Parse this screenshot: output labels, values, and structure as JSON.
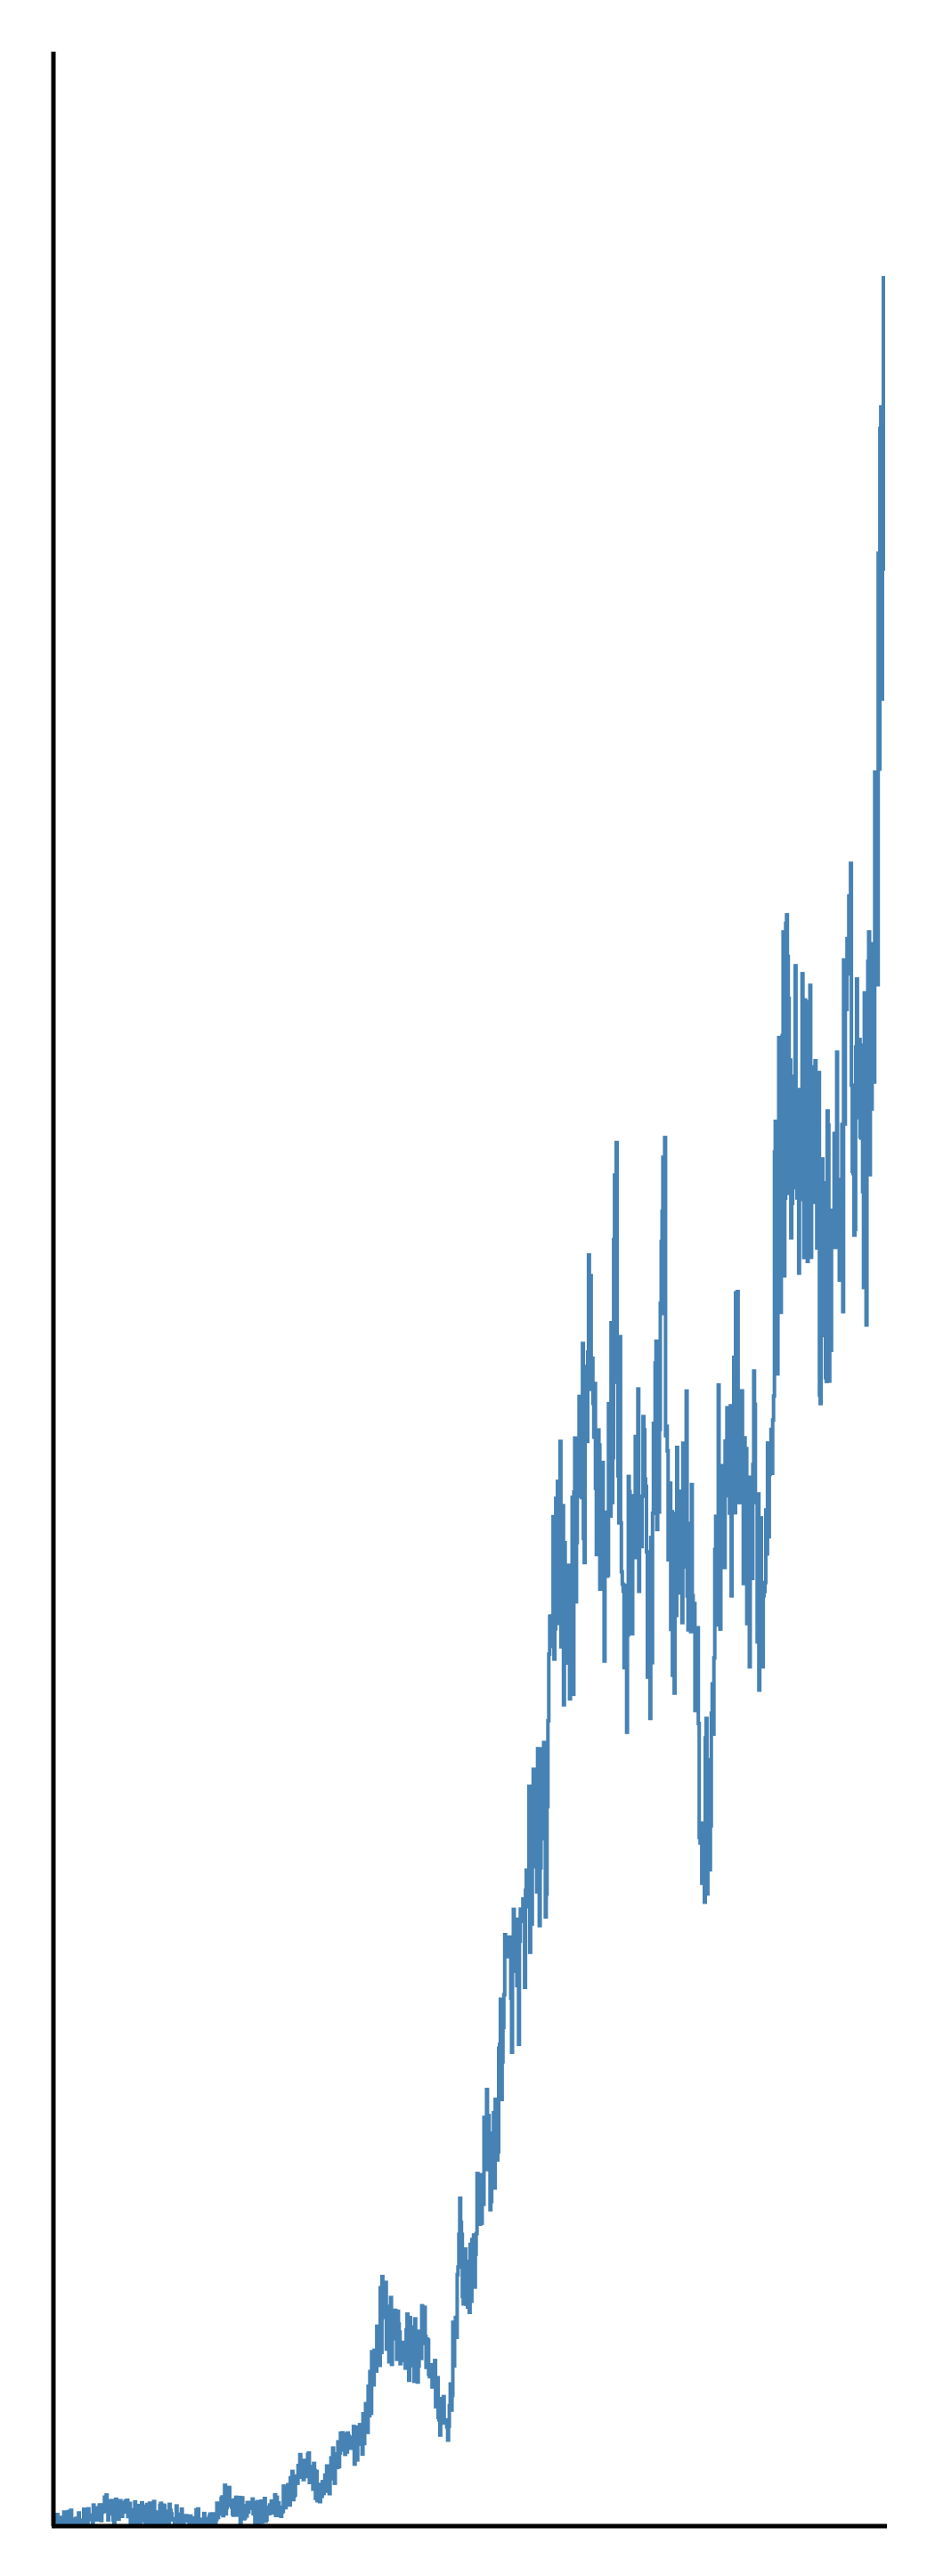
{
  "chart_data": {
    "type": "line",
    "title": "",
    "xlabel": "",
    "ylabel": "",
    "xlim": [
      0,
      480
    ],
    "ylim": [
      0,
      1000
    ],
    "grid": false,
    "line_color": "#4682b4",
    "axis_color": "#000000",
    "series": [
      {
        "anchors": [
          [
            0,
            0
          ],
          [
            20,
            2
          ],
          [
            30,
            8
          ],
          [
            40,
            6
          ],
          [
            55,
            5
          ],
          [
            60,
            4
          ],
          [
            75,
            3
          ],
          [
            90,
            2
          ],
          [
            100,
            12
          ],
          [
            108,
            6
          ],
          [
            120,
            6
          ],
          [
            135,
            12
          ],
          [
            145,
            30
          ],
          [
            155,
            14
          ],
          [
            165,
            32
          ],
          [
            172,
            35
          ],
          [
            180,
            45
          ],
          [
            190,
            95
          ],
          [
            200,
            82
          ],
          [
            210,
            78
          ],
          [
            215,
            85
          ],
          [
            222,
            55
          ],
          [
            228,
            40
          ],
          [
            235,
            125
          ],
          [
            240,
            100
          ],
          [
            245,
            135
          ],
          [
            250,
            170
          ],
          [
            255,
            160
          ],
          [
            260,
            235
          ],
          [
            265,
            245
          ],
          [
            272,
            250
          ],
          [
            275,
            290
          ],
          [
            280,
            310
          ],
          [
            285,
            305
          ],
          [
            290,
            435
          ],
          [
            292,
            455
          ],
          [
            296,
            390
          ],
          [
            300,
            420
          ],
          [
            305,
            460
          ],
          [
            310,
            510
          ],
          [
            315,
            470
          ],
          [
            320,
            420
          ],
          [
            325,
            570
          ],
          [
            330,
            395
          ],
          [
            335,
            430
          ],
          [
            340,
            465
          ],
          [
            345,
            400
          ],
          [
            350,
            510
          ],
          [
            353,
            565
          ],
          [
            356,
            450
          ],
          [
            360,
            420
          ],
          [
            365,
            470
          ],
          [
            370,
            405
          ],
          [
            375,
            300
          ],
          [
            380,
            340
          ],
          [
            385,
            460
          ],
          [
            390,
            450
          ],
          [
            395,
            495
          ],
          [
            400,
            420
          ],
          [
            405,
            455
          ],
          [
            410,
            410
          ],
          [
            415,
            520
          ],
          [
            420,
            610
          ],
          [
            425,
            660
          ],
          [
            430,
            640
          ],
          [
            435,
            600
          ],
          [
            440,
            620
          ],
          [
            445,
            540
          ],
          [
            450,
            585
          ],
          [
            455,
            600
          ],
          [
            460,
            660
          ],
          [
            465,
            645
          ],
          [
            470,
            610
          ],
          [
            472,
            670
          ],
          [
            475,
            735
          ],
          [
            478,
            835
          ],
          [
            480,
            1000
          ]
        ]
      }
    ]
  }
}
